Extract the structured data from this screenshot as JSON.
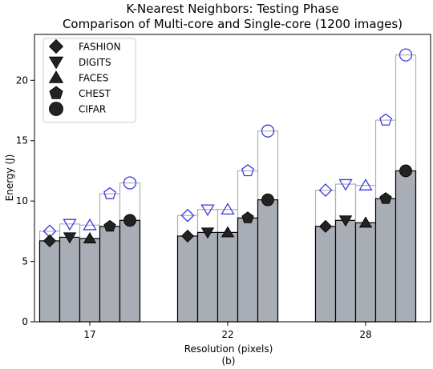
{
  "chart_data": {
    "type": "bar",
    "title": "K-Nearest Neighbors: Testing Phase",
    "subtitle": "Comparison of Multi-core and Single-core (1200 images)",
    "xlabel": "Resolution (pixels)",
    "caption": "(b)",
    "ylabel": "Energy (J)",
    "ylim": [
      0,
      23.8
    ],
    "yticks": [
      0,
      5,
      10,
      15,
      20
    ],
    "categories": [
      "17",
      "22",
      "28"
    ],
    "legend_position": "top-left",
    "grid": false,
    "multi_core_fill": "#a9aeb6",
    "single_core_outline": "#b0b0b0",
    "multi_core_marker_color": "#222222",
    "single_core_marker_color": "#3b3bdb",
    "series": [
      {
        "name": "FASHION",
        "marker": "diamond",
        "multi_core": [
          6.7,
          7.1,
          7.9
        ],
        "single_core": [
          7.5,
          8.8,
          10.9
        ]
      },
      {
        "name": "DIGITS",
        "marker": "triangle-down",
        "multi_core": [
          7.0,
          7.4,
          8.4
        ],
        "single_core": [
          8.1,
          9.3,
          11.4
        ]
      },
      {
        "name": "FACES",
        "marker": "triangle-up",
        "multi_core": [
          6.9,
          7.4,
          8.2
        ],
        "single_core": [
          8.0,
          9.3,
          11.3
        ]
      },
      {
        "name": "CHEST",
        "marker": "pentagon",
        "multi_core": [
          7.9,
          8.6,
          10.2
        ],
        "single_core": [
          10.6,
          12.5,
          16.7
        ]
      },
      {
        "name": "CIFAR",
        "marker": "circle",
        "multi_core": [
          8.4,
          10.1,
          12.5
        ],
        "single_core": [
          11.5,
          15.8,
          22.1
        ]
      }
    ]
  }
}
